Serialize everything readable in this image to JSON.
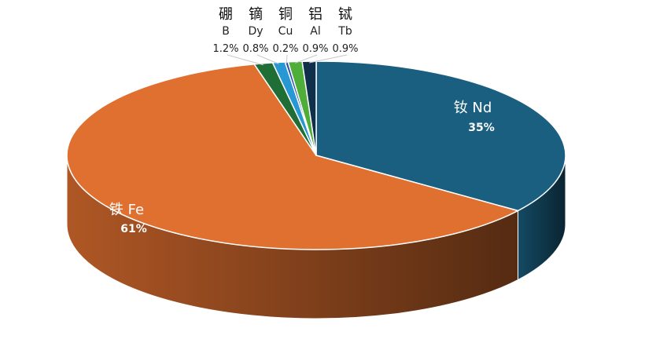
{
  "chart_data": {
    "type": "pie",
    "title": "",
    "style": "3d-tilted",
    "slices": [
      {
        "name": "钕 Nd",
        "label_cn": "钕",
        "label_en": "Nd",
        "value": 35,
        "value_label": "35%",
        "color": "#1a5f80",
        "label_position": "inside"
      },
      {
        "name": "铁 Fe",
        "label_cn": "铁",
        "label_en": "Fe",
        "value": 61,
        "value_label": "61%",
        "color": "#e07030",
        "label_position": "inside"
      },
      {
        "name": "硼 B",
        "label_cn": "硼",
        "label_en": "B",
        "value": 1.2,
        "value_label": "1.2%",
        "color": "#1e6e36",
        "label_position": "outside"
      },
      {
        "name": "镝 Dy",
        "label_cn": "镝",
        "label_en": "Dy",
        "value": 0.8,
        "value_label": "0.8%",
        "color": "#2798d3",
        "label_position": "outside"
      },
      {
        "name": "铜 Cu",
        "label_cn": "铜",
        "label_en": "Cu",
        "value": 0.2,
        "value_label": "0.2%",
        "color": "#2f4aa8",
        "label_position": "outside"
      },
      {
        "name": "铝 Al",
        "label_cn": "铝",
        "label_en": "Al",
        "value": 0.9,
        "value_label": "0.9%",
        "color": "#4fae3a",
        "label_position": "outside"
      },
      {
        "name": "铽 Tb",
        "label_cn": "铽",
        "label_en": "Tb",
        "value": 0.9,
        "value_label": "0.9%",
        "color": "#0f2f4a",
        "label_position": "outside"
      }
    ]
  }
}
